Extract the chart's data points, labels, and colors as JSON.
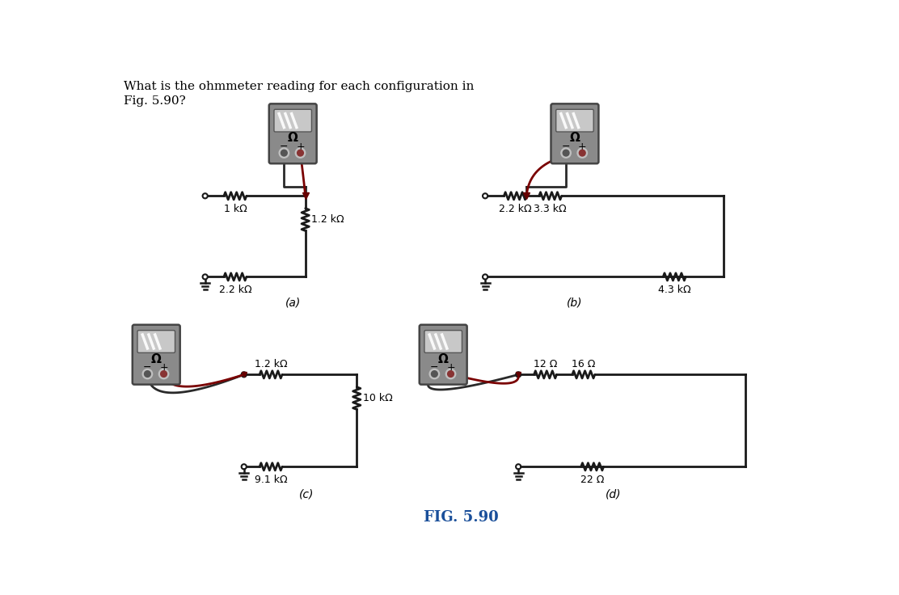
{
  "title_line1": "What is the ohmmeter reading for each configuration in",
  "title_line2": "Fig. 5.90?",
  "fig_label": "FIG. 5.90",
  "bg_color": "#ffffff",
  "circuit_color": "#1a1a1a",
  "wire_black": "#2a2a2a",
  "wire_red": "#7a0000",
  "sub_labels": [
    "(a)",
    "(b)",
    "(c)",
    "(d)"
  ],
  "resistor_labels_a": [
    "1 kΩ",
    "1.2 kΩ",
    "2.2 kΩ"
  ],
  "resistor_labels_b": [
    "2.2 kΩ",
    "3.3 kΩ",
    "4.3 kΩ"
  ],
  "resistor_labels_c": [
    "1.2 kΩ",
    "10 kΩ",
    "9.1 kΩ"
  ],
  "resistor_labels_d": [
    "12 Ω",
    "16 Ω",
    "22 Ω"
  ]
}
